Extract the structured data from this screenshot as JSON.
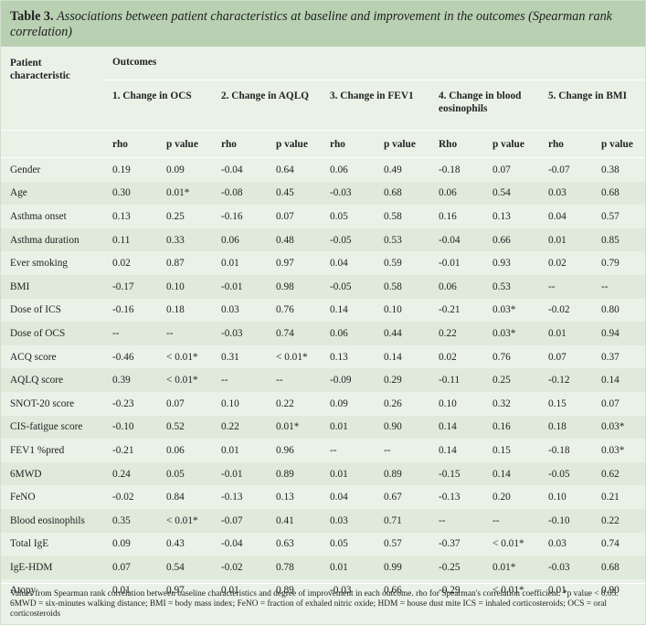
{
  "title": {
    "label": "Table 3.",
    "text": "Associations between patient characteristics at baseline and improvement in the outcomes (Spearman rank correlation)"
  },
  "header": {
    "patient_characteristic": "Patient characteristic",
    "outcomes": "Outcomes",
    "outcome_names": [
      "1. Change in OCS",
      "2. Change in AQLQ",
      "3. Change in FEV1",
      "4. Change in blood eosinophils",
      "5. Change in BMI"
    ],
    "subheaders": [
      "rho",
      "p value",
      "rho",
      "p value",
      "rho",
      "p value",
      "Rho",
      "p value",
      "rho",
      "p value"
    ]
  },
  "rows": [
    {
      "name": "Gender",
      "values": [
        "0.19",
        "0.09",
        "-0.04",
        "0.64",
        "0.06",
        "0.49",
        "-0.18",
        "0.07",
        "-0.07",
        "0.38"
      ]
    },
    {
      "name": "Age",
      "values": [
        "0.30",
        "0.01*",
        "-0.08",
        "0.45",
        "-0.03",
        "0.68",
        "0.06",
        "0.54",
        "0.03",
        "0.68"
      ]
    },
    {
      "name": "Asthma onset",
      "values": [
        "0.13",
        "0.25",
        "-0.16",
        "0.07",
        "0.05",
        "0.58",
        "0.16",
        "0.13",
        "0.04",
        "0.57"
      ]
    },
    {
      "name": "Asthma duration",
      "values": [
        "0.11",
        "0.33",
        "0.06",
        "0.48",
        "-0.05",
        "0.53",
        "-0.04",
        "0.66",
        "0.01",
        "0.85"
      ]
    },
    {
      "name": "Ever smoking",
      "values": [
        "0.02",
        "0.87",
        "0.01",
        "0.97",
        "0.04",
        "0.59",
        "-0.01",
        "0.93",
        "0.02",
        "0.79"
      ]
    },
    {
      "name": "BMI",
      "values": [
        "-0.17",
        "0.10",
        "-0.01",
        "0.98",
        "-0.05",
        "0.58",
        "0.06",
        "0.53",
        "--",
        "--"
      ]
    },
    {
      "name": "Dose of ICS",
      "values": [
        "-0.16",
        "0.18",
        "0.03",
        "0.76",
        "0.14",
        "0.10",
        "-0.21",
        "0.03*",
        "-0.02",
        "0.80"
      ]
    },
    {
      "name": "Dose of OCS",
      "values": [
        "--",
        "--",
        "-0.03",
        "0.74",
        "0.06",
        "0.44",
        "0.22",
        "0.03*",
        "0.01",
        "0.94"
      ]
    },
    {
      "name": "ACQ score",
      "values": [
        "-0.46",
        "< 0.01*",
        "0.31",
        "< 0.01*",
        "0.13",
        "0.14",
        "0.02",
        "0.76",
        "0.07",
        "0.37"
      ]
    },
    {
      "name": "AQLQ score",
      "values": [
        "0.39",
        "< 0.01*",
        "--",
        "--",
        "-0.09",
        "0.29",
        "-0.11",
        "0.25",
        "-0.12",
        "0.14"
      ]
    },
    {
      "name": "SNOT-20 score",
      "values": [
        "-0.23",
        "0.07",
        "0.10",
        "0.22",
        "0.09",
        "0.26",
        "0.10",
        "0.32",
        "0.15",
        "0.07"
      ]
    },
    {
      "name": "CIS-fatigue score",
      "values": [
        "-0.10",
        "0.52",
        "0.22",
        "0.01*",
        "0.01",
        "0.90",
        "0.14",
        "0.16",
        "0.18",
        "0.03*"
      ]
    },
    {
      "name": "FEV1 %pred",
      "values": [
        "-0.21",
        "0.06",
        "0.01",
        "0.96",
        "--",
        "--",
        "0.14",
        "0.15",
        "-0.18",
        "0.03*"
      ]
    },
    {
      "name": "6MWD",
      "values": [
        "0.24",
        "0.05",
        "-0.01",
        "0.89",
        "0.01",
        "0.89",
        "-0.15",
        "0.14",
        "-0.05",
        "0.62"
      ]
    },
    {
      "name": "FeNO",
      "values": [
        "-0.02",
        "0.84",
        "-0.13",
        "0.13",
        "0.04",
        "0.67",
        "-0.13",
        "0.20",
        "0.10",
        "0.21"
      ]
    },
    {
      "name": "Blood eosinophils",
      "values": [
        "0.35",
        "< 0.01*",
        "-0.07",
        "0.41",
        "0.03",
        "0.71",
        "--",
        "--",
        "-0.10",
        "0.22"
      ]
    },
    {
      "name": "Total IgE",
      "values": [
        "0.09",
        "0.43",
        "-0.04",
        "0.63",
        "0.05",
        "0.57",
        "-0.37",
        "< 0.01*",
        "0.03",
        "0.74"
      ]
    },
    {
      "name": "IgE-HDM",
      "values": [
        "0.07",
        "0.54",
        "-0.02",
        "0.78",
        "0.01",
        "0.99",
        "-0.25",
        "0.01*",
        "-0.03",
        "0.68"
      ]
    },
    {
      "name": "Atopy",
      "values": [
        "0.01",
        "0.97",
        "0.01",
        "0.89",
        "-0.03",
        "0.66",
        "-0.29",
        "< 0.01*",
        "0.01",
        "0.90"
      ]
    }
  ],
  "footer": "Values from Spearman rank correlation between baseline characteristics and degree of improvement in each outcome. rho for Spearman's correlation coefficient. *p value < 0.05. 6MWD = six-minutes walking distance; BMI = body mass index; FeNO = fraction of exhaled nitric oxide; HDM = house dust mite ICS = inhaled corticosteroids; OCS = oral corticosteroids"
}
